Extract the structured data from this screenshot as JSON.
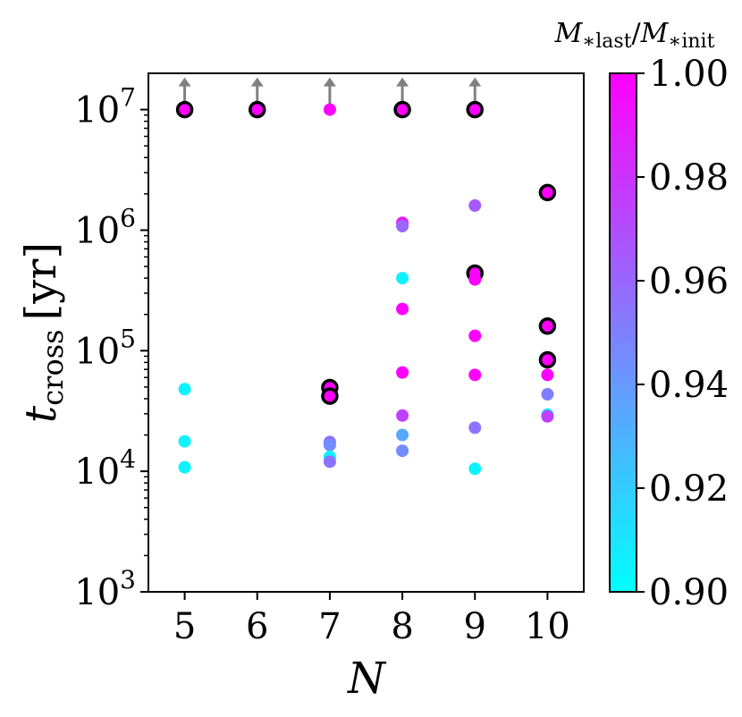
{
  "chart_data": {
    "type": "scatter",
    "xlabel": "N",
    "ylabel_main": "t",
    "ylabel_sub": "cross",
    "ylabel_unit": "[yr]",
    "y_scale": "log",
    "xlim": [
      4.5,
      10.5
    ],
    "ylim": [
      1000,
      20000000
    ],
    "x_ticks": [
      5,
      6,
      7,
      8,
      9,
      10
    ],
    "x_tick_labels": [
      "5",
      "6",
      "7",
      "8",
      "9",
      "10"
    ],
    "y_ticks": [
      1000,
      10000,
      100000,
      1000000,
      10000000
    ],
    "y_tick_labels": [
      {
        "base": "10",
        "exp": "3"
      },
      {
        "base": "10",
        "exp": "4"
      },
      {
        "base": "10",
        "exp": "5"
      },
      {
        "base": "10",
        "exp": "6"
      },
      {
        "base": "10",
        "exp": "7"
      }
    ],
    "grid": false,
    "colorbar": {
      "label_html_parts": [
        "M",
        "∗",
        "last",
        "/",
        "M",
        "∗",
        "init"
      ],
      "range": [
        0.9,
        1.0
      ],
      "ticks": [
        0.9,
        0.92,
        0.94,
        0.96,
        0.98,
        1.0
      ],
      "tick_labels": [
        "0.90",
        "0.92",
        "0.94",
        "0.96",
        "0.98",
        "1.00"
      ],
      "colormap": "cool",
      "color_low": "#00ffff",
      "color_high": "#ff00ff"
    },
    "lower_limit_arrow_color": "#808080",
    "circled_marker_edge": "#000000",
    "points": [
      {
        "x": 5,
        "y": 10000000,
        "c": 1.0,
        "circled": true,
        "lower_limit": true
      },
      {
        "x": 6,
        "y": 10000000,
        "c": 1.0,
        "circled": true,
        "lower_limit": true
      },
      {
        "x": 7,
        "y": 10000000,
        "c": 1.0,
        "circled": false,
        "lower_limit": true
      },
      {
        "x": 8,
        "y": 10000000,
        "c": 1.0,
        "circled": true,
        "lower_limit": true
      },
      {
        "x": 9,
        "y": 10000000,
        "c": 1.0,
        "circled": true,
        "lower_limit": true
      },
      {
        "x": 5,
        "y": 48000,
        "c": 0.905,
        "circled": false,
        "lower_limit": false
      },
      {
        "x": 5,
        "y": 17700,
        "c": 0.905,
        "circled": false,
        "lower_limit": false
      },
      {
        "x": 5,
        "y": 10800,
        "c": 0.905,
        "circled": false,
        "lower_limit": false
      },
      {
        "x": 7,
        "y": 49500,
        "c": 1.0,
        "circled": true,
        "lower_limit": false
      },
      {
        "x": 7,
        "y": 42000,
        "c": 1.0,
        "circled": true,
        "lower_limit": false
      },
      {
        "x": 7,
        "y": 17500,
        "c": 0.955,
        "circled": false,
        "lower_limit": false
      },
      {
        "x": 7,
        "y": 16500,
        "c": 0.945,
        "circled": false,
        "lower_limit": false
      },
      {
        "x": 7,
        "y": 13200,
        "c": 0.905,
        "circled": false,
        "lower_limit": false
      },
      {
        "x": 7,
        "y": 12000,
        "c": 0.955,
        "circled": false,
        "lower_limit": false
      },
      {
        "x": 8,
        "y": 1150000,
        "c": 0.99,
        "circled": false,
        "lower_limit": false
      },
      {
        "x": 8,
        "y": 1080000,
        "c": 0.96,
        "circled": false,
        "lower_limit": false
      },
      {
        "x": 8,
        "y": 400000,
        "c": 0.905,
        "circled": false,
        "lower_limit": false
      },
      {
        "x": 8,
        "y": 222000,
        "c": 1.0,
        "circled": false,
        "lower_limit": false
      },
      {
        "x": 8,
        "y": 66000,
        "c": 1.0,
        "circled": false,
        "lower_limit": false
      },
      {
        "x": 8,
        "y": 29000,
        "c": 0.975,
        "circled": false,
        "lower_limit": false
      },
      {
        "x": 8,
        "y": 20000,
        "c": 0.935,
        "circled": false,
        "lower_limit": false
      },
      {
        "x": 8,
        "y": 14800,
        "c": 0.945,
        "circled": false,
        "lower_limit": false
      },
      {
        "x": 9,
        "y": 1600000,
        "c": 0.965,
        "circled": false,
        "lower_limit": false
      },
      {
        "x": 9,
        "y": 440000,
        "c": 1.0,
        "circled": true,
        "lower_limit": false
      },
      {
        "x": 9,
        "y": 390000,
        "c": 1.0,
        "circled": false,
        "lower_limit": false
      },
      {
        "x": 9,
        "y": 133000,
        "c": 1.0,
        "circled": false,
        "lower_limit": false
      },
      {
        "x": 9,
        "y": 63000,
        "c": 1.0,
        "circled": false,
        "lower_limit": false
      },
      {
        "x": 9,
        "y": 23000,
        "c": 0.955,
        "circled": false,
        "lower_limit": false
      },
      {
        "x": 9,
        "y": 10500,
        "c": 0.905,
        "circled": false,
        "lower_limit": false
      },
      {
        "x": 10,
        "y": 2050000,
        "c": 1.0,
        "circled": true,
        "lower_limit": false
      },
      {
        "x": 10,
        "y": 160000,
        "c": 1.0,
        "circled": true,
        "lower_limit": false
      },
      {
        "x": 10,
        "y": 84000,
        "c": 1.0,
        "circled": true,
        "lower_limit": false
      },
      {
        "x": 10,
        "y": 63000,
        "c": 1.0,
        "circled": false,
        "lower_limit": false
      },
      {
        "x": 10,
        "y": 43500,
        "c": 0.95,
        "circled": false,
        "lower_limit": false
      },
      {
        "x": 10,
        "y": 29500,
        "c": 0.91,
        "circled": false,
        "lower_limit": false
      },
      {
        "x": 10,
        "y": 28500,
        "c": 0.975,
        "circled": false,
        "lower_limit": false
      }
    ]
  }
}
